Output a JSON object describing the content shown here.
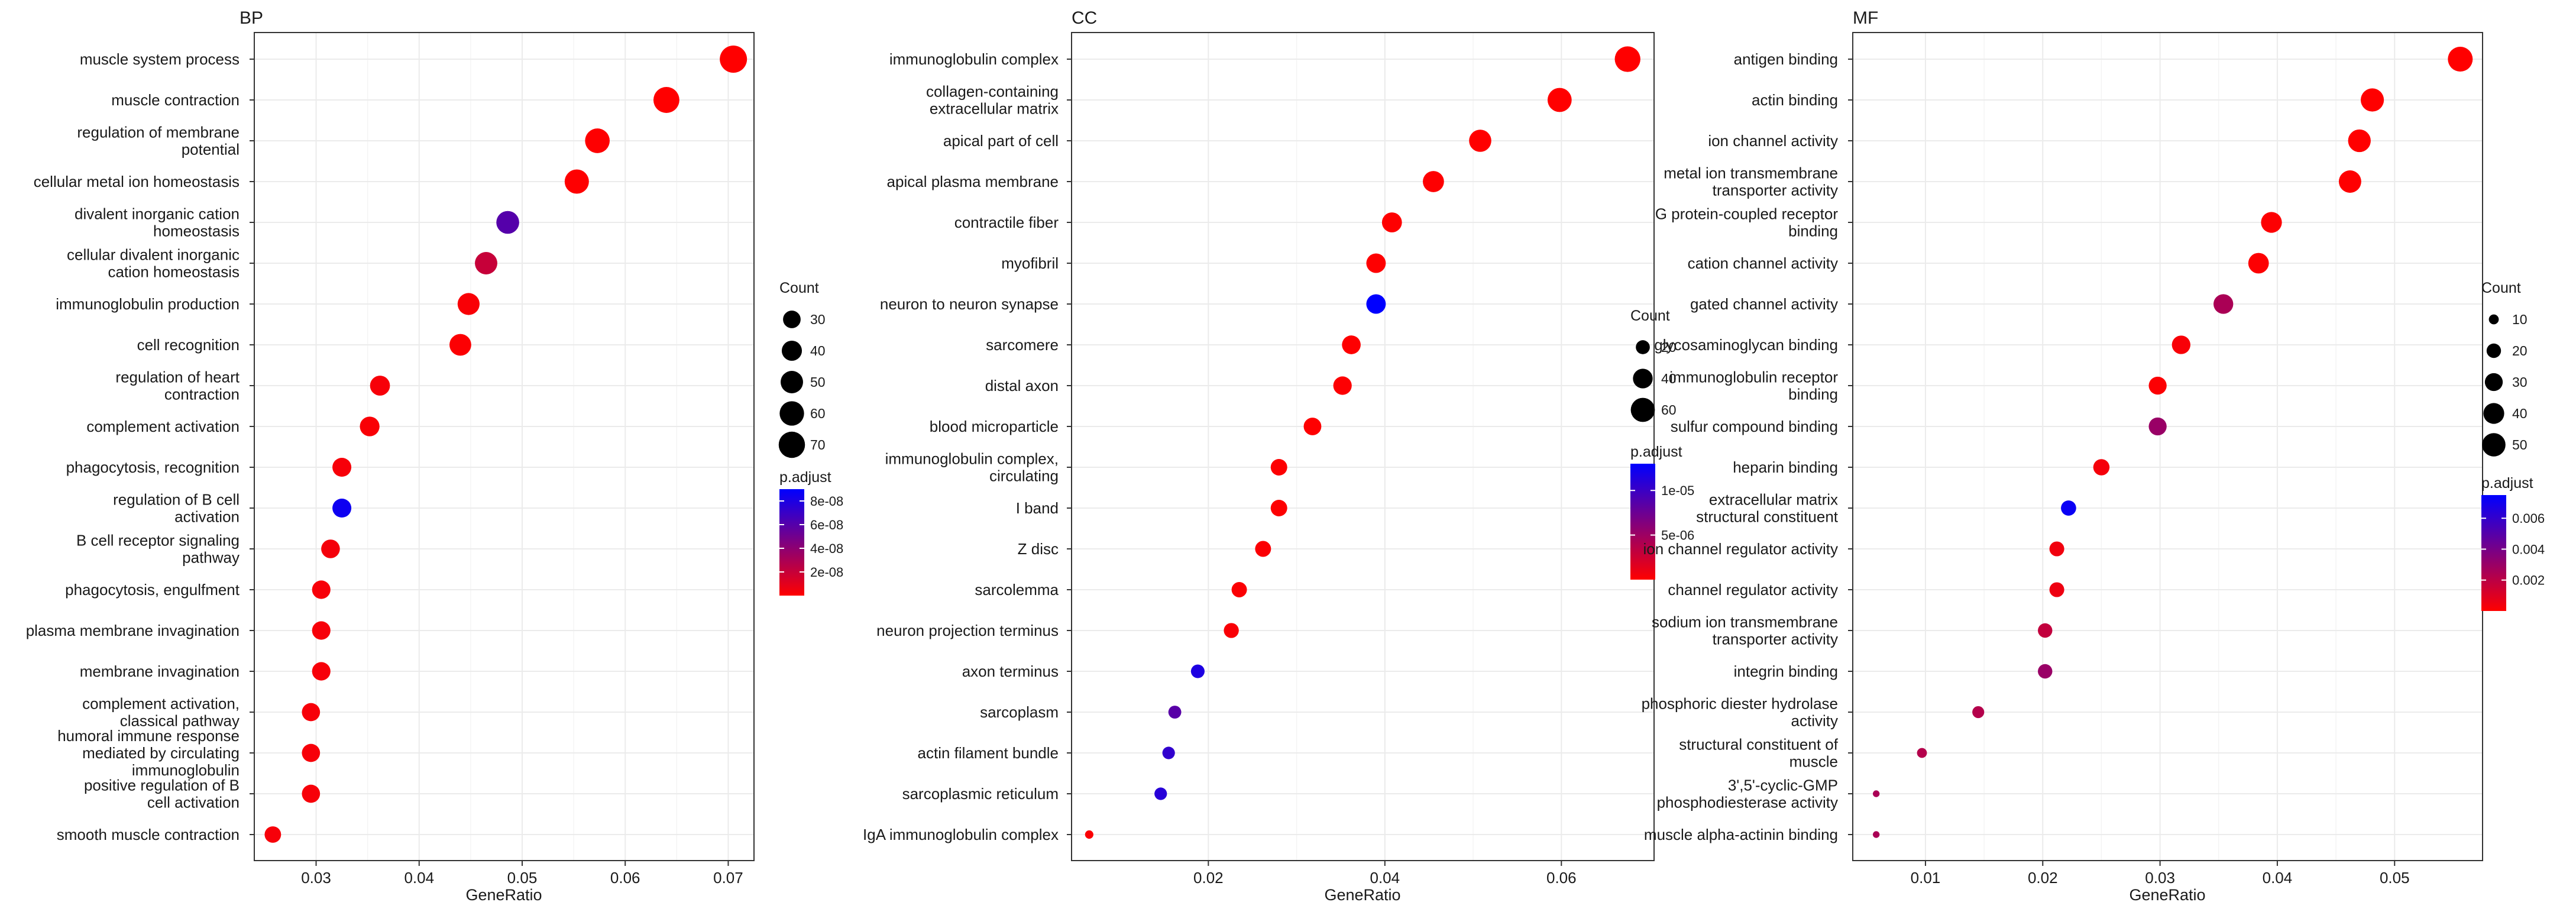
{
  "figure": {
    "colors": {
      "low": "#ff0000",
      "high": "#0000ff",
      "grid": "#ebebeb",
      "border": "#333333"
    }
  },
  "chart_data": [
    {
      "type": "scatter",
      "title": "BP",
      "xlabel": "GeneRatio",
      "ylabel": "",
      "xlim": [
        0.024,
        0.0725
      ],
      "xticks": [
        "0.03",
        "0.04",
        "0.05",
        "0.06",
        "0.07"
      ],
      "xtick_values": [
        0.03,
        0.04,
        0.05,
        0.06,
        0.07
      ],
      "count_legend": {
        "title": "Count",
        "values": [
          30,
          40,
          50,
          60,
          70
        ]
      },
      "padj_legend": {
        "title": "p.adjust",
        "range": [
          0,
          9e-08
        ],
        "ticks": [
          "8e-08",
          "6e-08",
          "4e-08",
          "2e-08"
        ],
        "tick_values": [
          8e-08,
          6e-08,
          4e-08,
          2e-08
        ]
      },
      "size_range": [
        10,
        75
      ],
      "terms": [
        {
          "label": [
            "muscle system process"
          ],
          "x": 0.0705,
          "count": 75,
          "padj": 1e-10
        },
        {
          "label": [
            "muscle contraction"
          ],
          "x": 0.064,
          "count": 68,
          "padj": 1e-10
        },
        {
          "label": [
            "regulation of membrane",
            "potential"
          ],
          "x": 0.0573,
          "count": 61,
          "padj": 2e-10
        },
        {
          "label": [
            "cellular metal ion homeostasis"
          ],
          "x": 0.0553,
          "count": 59,
          "padj": 3e-10
        },
        {
          "label": [
            "divalent inorganic cation",
            "homeostasis"
          ],
          "x": 0.0486,
          "count": 52,
          "padj": 6e-08
        },
        {
          "label": [
            "cellular divalent inorganic",
            "cation homeostasis"
          ],
          "x": 0.0465,
          "count": 50,
          "padj": 2e-08
        },
        {
          "label": [
            "immunoglobulin production"
          ],
          "x": 0.0448,
          "count": 48,
          "padj": 2e-09
        },
        {
          "label": [
            "cell recognition"
          ],
          "x": 0.044,
          "count": 47,
          "padj": 1e-09
        },
        {
          "label": [
            "regulation of heart",
            "contraction"
          ],
          "x": 0.0362,
          "count": 39,
          "padj": 3e-09
        },
        {
          "label": [
            "complement activation"
          ],
          "x": 0.0352,
          "count": 38,
          "padj": 2e-09
        },
        {
          "label": [
            "phagocytosis, recognition"
          ],
          "x": 0.0325,
          "count": 35,
          "padj": 3e-09
        },
        {
          "label": [
            "regulation of B cell",
            "activation"
          ],
          "x": 0.0325,
          "count": 35,
          "padj": 8.5e-08
        },
        {
          "label": [
            "B cell receptor signaling",
            "pathway"
          ],
          "x": 0.0314,
          "count": 34,
          "padj": 4e-09
        },
        {
          "label": [
            "phagocytosis, engulfment"
          ],
          "x": 0.0305,
          "count": 33,
          "padj": 3e-09
        },
        {
          "label": [
            "plasma membrane invagination"
          ],
          "x": 0.0305,
          "count": 33,
          "padj": 3e-09
        },
        {
          "label": [
            "membrane invagination"
          ],
          "x": 0.0305,
          "count": 33,
          "padj": 3e-09
        },
        {
          "label": [
            "complement activation,",
            "classical pathway"
          ],
          "x": 0.0295,
          "count": 32,
          "padj": 3e-09
        },
        {
          "label": [
            "humoral immune response",
            "mediated by circulating",
            "immunoglobulin"
          ],
          "x": 0.0295,
          "count": 32,
          "padj": 3e-09
        },
        {
          "label": [
            "positive regulation of B",
            "cell activation"
          ],
          "x": 0.0295,
          "count": 32,
          "padj": 3e-09
        },
        {
          "label": [
            "smooth muscle contraction"
          ],
          "x": 0.0258,
          "count": 26,
          "padj": 3e-09
        }
      ]
    },
    {
      "type": "scatter",
      "title": "CC",
      "xlabel": "GeneRatio",
      "ylabel": "",
      "xlim": [
        0.0045,
        0.0705
      ],
      "xticks": [
        "0.02",
        "0.04",
        "0.06"
      ],
      "xtick_values": [
        0.02,
        0.04,
        0.06
      ],
      "count_legend": {
        "title": "Count",
        "values": [
          20,
          40,
          60
        ]
      },
      "padj_legend": {
        "title": "p.adjust",
        "range": [
          0,
          1.3e-05
        ],
        "ticks": [
          "1e-05",
          "5e-06"
        ],
        "tick_values": [
          1e-05,
          5e-06
        ]
      },
      "size_range": [
        5,
        70
      ],
      "terms": [
        {
          "label": [
            "immunoglobulin complex"
          ],
          "x": 0.0675,
          "count": 68,
          "padj": 1e-09
        },
        {
          "label": [
            "collagen-containing",
            "extracellular matrix"
          ],
          "x": 0.0598,
          "count": 60,
          "padj": 1e-09
        },
        {
          "label": [
            "apical part of cell"
          ],
          "x": 0.0508,
          "count": 51,
          "padj": 2e-08
        },
        {
          "label": [
            "apical plasma membrane"
          ],
          "x": 0.0455,
          "count": 46,
          "padj": 5e-08
        },
        {
          "label": [
            "contractile fiber"
          ],
          "x": 0.0408,
          "count": 41,
          "padj": 3e-08
        },
        {
          "label": [
            "myofibril"
          ],
          "x": 0.039,
          "count": 39,
          "padj": 3e-08
        },
        {
          "label": [
            "neuron to neuron synapse"
          ],
          "x": 0.039,
          "count": 39,
          "padj": 1.3e-05
        },
        {
          "label": [
            "sarcomere"
          ],
          "x": 0.0362,
          "count": 36,
          "padj": 5e-08
        },
        {
          "label": [
            "distal axon"
          ],
          "x": 0.0352,
          "count": 35,
          "padj": 1e-07
        },
        {
          "label": [
            "blood microparticle"
          ],
          "x": 0.0318,
          "count": 32,
          "padj": 5e-08
        },
        {
          "label": [
            "immunoglobulin complex,",
            "circulating"
          ],
          "x": 0.028,
          "count": 28,
          "padj": 1e-07
        },
        {
          "label": [
            "I band"
          ],
          "x": 0.028,
          "count": 28,
          "padj": 1e-07
        },
        {
          "label": [
            "Z disc"
          ],
          "x": 0.0262,
          "count": 26,
          "padj": 2e-07
        },
        {
          "label": [
            "sarcolemma"
          ],
          "x": 0.0235,
          "count": 24,
          "padj": 2e-07
        },
        {
          "label": [
            "neuron projection terminus"
          ],
          "x": 0.0226,
          "count": 23,
          "padj": 3e-07
        },
        {
          "label": [
            "axon terminus"
          ],
          "x": 0.0188,
          "count": 19,
          "padj": 1.15e-05
        },
        {
          "label": [
            "sarcoplasm"
          ],
          "x": 0.0162,
          "count": 17,
          "padj": 8.5e-06
        },
        {
          "label": [
            "actin filament bundle"
          ],
          "x": 0.0155,
          "count": 16,
          "padj": 1.05e-05
        },
        {
          "label": [
            "sarcoplasmic reticulum"
          ],
          "x": 0.0146,
          "count": 16,
          "padj": 1.1e-05
        },
        {
          "label": [
            "IgA immunoglobulin complex"
          ],
          "x": 0.0065,
          "count": 7,
          "padj": 2e-07
        }
      ]
    },
    {
      "type": "scatter",
      "title": "MF",
      "xlabel": "GeneRatio",
      "ylabel": "",
      "xlim": [
        0.0038,
        0.0575
      ],
      "xticks": [
        "0.01",
        "0.02",
        "0.03",
        "0.04",
        "0.05"
      ],
      "xtick_values": [
        0.01,
        0.02,
        0.03,
        0.04,
        0.05
      ],
      "count_legend": {
        "title": "Count",
        "values": [
          10,
          20,
          30,
          40,
          50
        ]
      },
      "padj_legend": {
        "title": "p.adjust",
        "range": [
          0,
          0.0075
        ],
        "ticks": [
          "0.006",
          "0.004",
          "0.002"
        ],
        "tick_values": [
          0.006,
          0.004,
          0.002
        ]
      },
      "size_range": [
        4,
        56
      ],
      "terms": [
        {
          "label": [
            "antigen binding"
          ],
          "x": 0.0556,
          "count": 56,
          "padj": 1e-06
        },
        {
          "label": [
            "actin binding"
          ],
          "x": 0.0481,
          "count": 49,
          "padj": 1e-05
        },
        {
          "label": [
            "ion channel activity"
          ],
          "x": 0.047,
          "count": 47,
          "padj": 1e-05
        },
        {
          "label": [
            "metal ion transmembrane",
            "transporter activity"
          ],
          "x": 0.0462,
          "count": 46,
          "padj": 2e-05
        },
        {
          "label": [
            "G protein-coupled receptor",
            "binding"
          ],
          "x": 0.0395,
          "count": 40,
          "padj": 5e-05
        },
        {
          "label": [
            "cation channel activity"
          ],
          "x": 0.0384,
          "count": 39,
          "padj": 5e-05
        },
        {
          "label": [
            "gated channel activity"
          ],
          "x": 0.0354,
          "count": 36,
          "padj": 0.0025
        },
        {
          "label": [
            "glycosaminoglycan binding"
          ],
          "x": 0.0318,
          "count": 32,
          "padj": 0.0002
        },
        {
          "label": [
            "immunoglobulin receptor",
            "binding"
          ],
          "x": 0.0298,
          "count": 30,
          "padj": 0.0001
        },
        {
          "label": [
            "sulfur compound binding"
          ],
          "x": 0.0298,
          "count": 30,
          "padj": 0.003
        },
        {
          "label": [
            "heparin binding"
          ],
          "x": 0.025,
          "count": 25,
          "padj": 0.0003
        },
        {
          "label": [
            "extracellular matrix",
            "structural constituent"
          ],
          "x": 0.0222,
          "count": 22,
          "padj": 0.0072
        },
        {
          "label": [
            "ion channel regulator activity"
          ],
          "x": 0.0212,
          "count": 21,
          "padj": 0.0004
        },
        {
          "label": [
            "channel regulator activity"
          ],
          "x": 0.0212,
          "count": 21,
          "padj": 0.0005
        },
        {
          "label": [
            "sodium ion transmembrane",
            "transporter activity"
          ],
          "x": 0.0202,
          "count": 20,
          "padj": 0.0018
        },
        {
          "label": [
            "integrin binding"
          ],
          "x": 0.0202,
          "count": 20,
          "padj": 0.003
        },
        {
          "label": [
            "phosphoric diester hydrolase",
            "activity"
          ],
          "x": 0.0145,
          "count": 14,
          "padj": 0.0022
        },
        {
          "label": [
            "structural constituent of",
            "muscle"
          ],
          "x": 0.0097,
          "count": 10,
          "padj": 0.0022
        },
        {
          "label": [
            "3',5'-cyclic-GMP",
            "phosphodiesterase activity"
          ],
          "x": 0.0058,
          "count": 5,
          "padj": 0.0025
        },
        {
          "label": [
            "muscle alpha-actinin binding"
          ],
          "x": 0.0058,
          "count": 5,
          "padj": 0.0025
        }
      ]
    }
  ]
}
